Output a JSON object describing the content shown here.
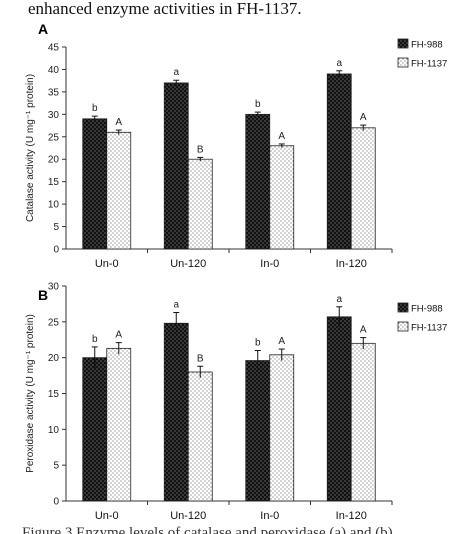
{
  "caption_fragment": "enhanced enzyme activities in FH-1137.",
  "bottom_fragment": "Figure 3 Enzyme levels of catalase and peroxidase (a) and (b)",
  "chart_data": [
    {
      "type": "bar",
      "panel_label": "A",
      "ylabel": "Catalase activity (U mg⁻¹ protein)",
      "ylim": [
        0,
        45
      ],
      "yticks": [
        0,
        5,
        10,
        15,
        20,
        25,
        30,
        35,
        40,
        45
      ],
      "categories": [
        "Un-0",
        "Un-120",
        "In-0",
        "In-120"
      ],
      "legend_position": "top-right",
      "grid": false,
      "series": [
        {
          "name": "FH-988",
          "pattern": "dark-dotted",
          "values": [
            29,
            37,
            30,
            39
          ],
          "errors": [
            0.6,
            0.6,
            0.5,
            0.7
          ],
          "labels": [
            "b",
            "a",
            "b",
            "a"
          ]
        },
        {
          "name": "FH-1137",
          "pattern": "light-dotted",
          "values": [
            26,
            20,
            23,
            27
          ],
          "errors": [
            0.5,
            0.4,
            0.4,
            0.6
          ],
          "labels": [
            "A",
            "B",
            "A",
            "A"
          ]
        }
      ]
    },
    {
      "type": "bar",
      "panel_label": "B",
      "ylabel": "Peroxidase activity (U mg⁻¹ protein)",
      "ylim": [
        0,
        30
      ],
      "yticks": [
        0,
        5,
        10,
        15,
        20,
        25,
        30
      ],
      "categories": [
        "Un-0",
        "Un-120",
        "In-0",
        "In-120"
      ],
      "legend_position": "top-right",
      "grid": false,
      "series": [
        {
          "name": "FH-988",
          "pattern": "dark-dotted",
          "values": [
            20,
            24.8,
            19.6,
            25.7
          ],
          "errors": [
            1.5,
            1.5,
            1.4,
            1.4
          ],
          "labels": [
            "b",
            "a",
            "b",
            "a"
          ]
        },
        {
          "name": "FH-1137",
          "pattern": "light-dotted",
          "values": [
            21.3,
            18,
            20.4,
            22
          ],
          "errors": [
            0.8,
            0.8,
            0.8,
            0.8
          ],
          "labels": [
            "A",
            "B",
            "A",
            "A"
          ]
        }
      ]
    }
  ],
  "colors": {
    "dark_bar": "#111111",
    "light_bar": "#ffffff",
    "axis": "#333333"
  }
}
